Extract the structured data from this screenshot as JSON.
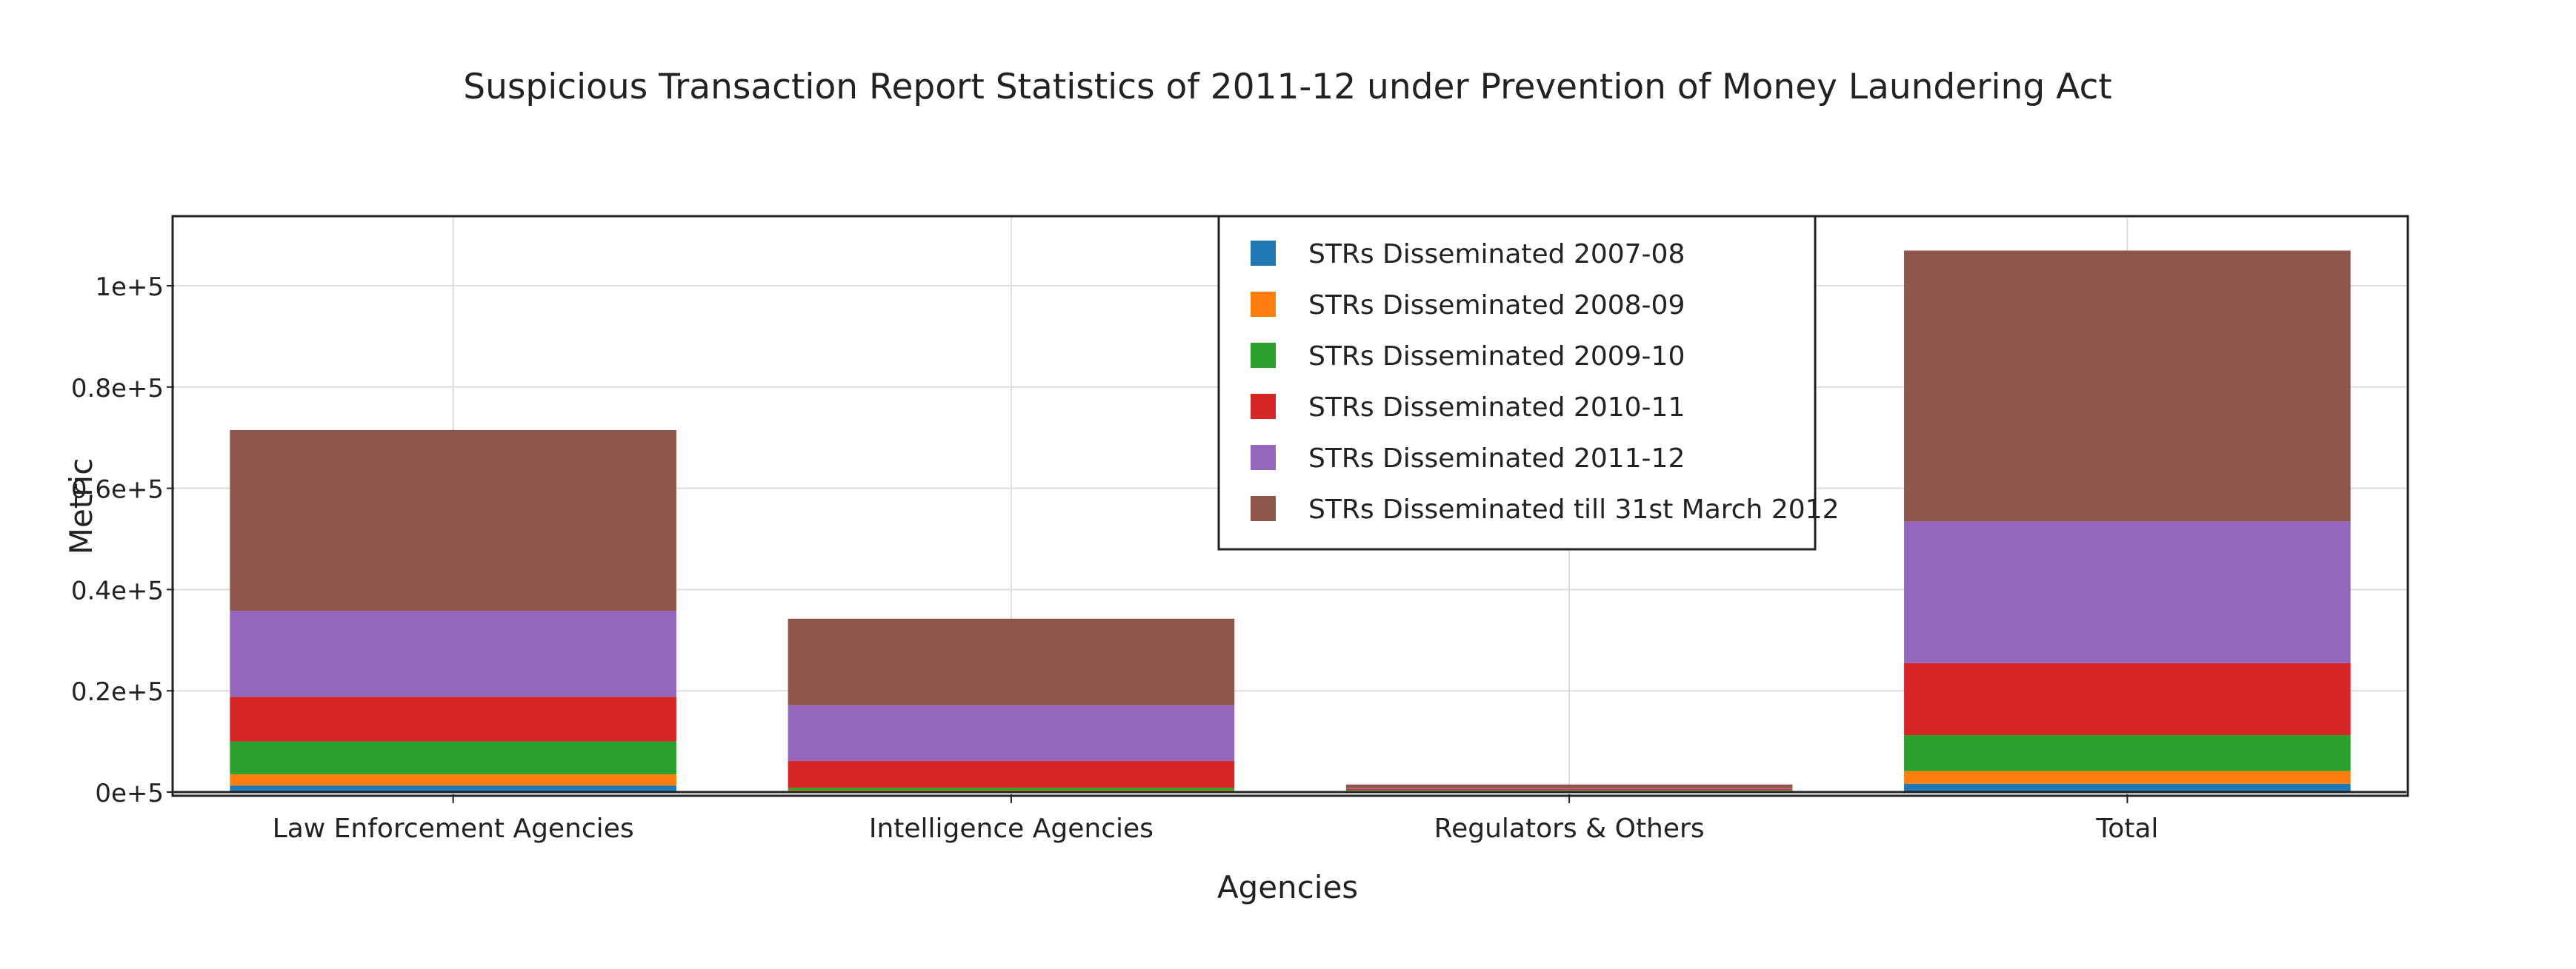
{
  "chart_data": {
    "type": "bar",
    "stacked": true,
    "title": "Suspicious Transaction Report Statistics of 2011-12 under Prevention of Money Laundering Act",
    "xlabel": "Agencies",
    "ylabel": "Metric",
    "categories": [
      "Law Enforcement Agencies",
      "Intelligence Agencies",
      "Regulators & Others",
      "Total"
    ],
    "ylim": [
      0,
      112000
    ],
    "yticks": [
      {
        "value": 0,
        "label": "0e+5"
      },
      {
        "value": 20000,
        "label": "0.2e+5"
      },
      {
        "value": 40000,
        "label": "0.4e+5"
      },
      {
        "value": 60000,
        "label": "0.6e+5"
      },
      {
        "value": 80000,
        "label": "0.8e+5"
      },
      {
        "value": 100000,
        "label": "1e+5"
      }
    ],
    "grid": true,
    "legend_position": "top-center",
    "series": [
      {
        "name": "STRs Disseminated 2007-08",
        "color": "#1f77b4",
        "values": [
          1300,
          200,
          150,
          1650
        ]
      },
      {
        "name": "STRs Disseminated 2008-09",
        "color": "#ff7f0e",
        "values": [
          2200,
          150,
          150,
          2500
        ]
      },
      {
        "name": "STRs Disseminated 2009-10",
        "color": "#2ca02c",
        "values": [
          6500,
          500,
          150,
          7100
        ]
      },
      {
        "name": "STRs Disseminated 2010-11",
        "color": "#d62728",
        "values": [
          8800,
          5300,
          150,
          14200
        ]
      },
      {
        "name": "STRs Disseminated 2011-12",
        "color": "#9467bd",
        "values": [
          17000,
          11000,
          150,
          28000
        ]
      },
      {
        "name": "STRs Disseminated till 31st March 2012",
        "color": "#8c564b",
        "values": [
          35700,
          17100,
          750,
          53500
        ]
      }
    ]
  }
}
